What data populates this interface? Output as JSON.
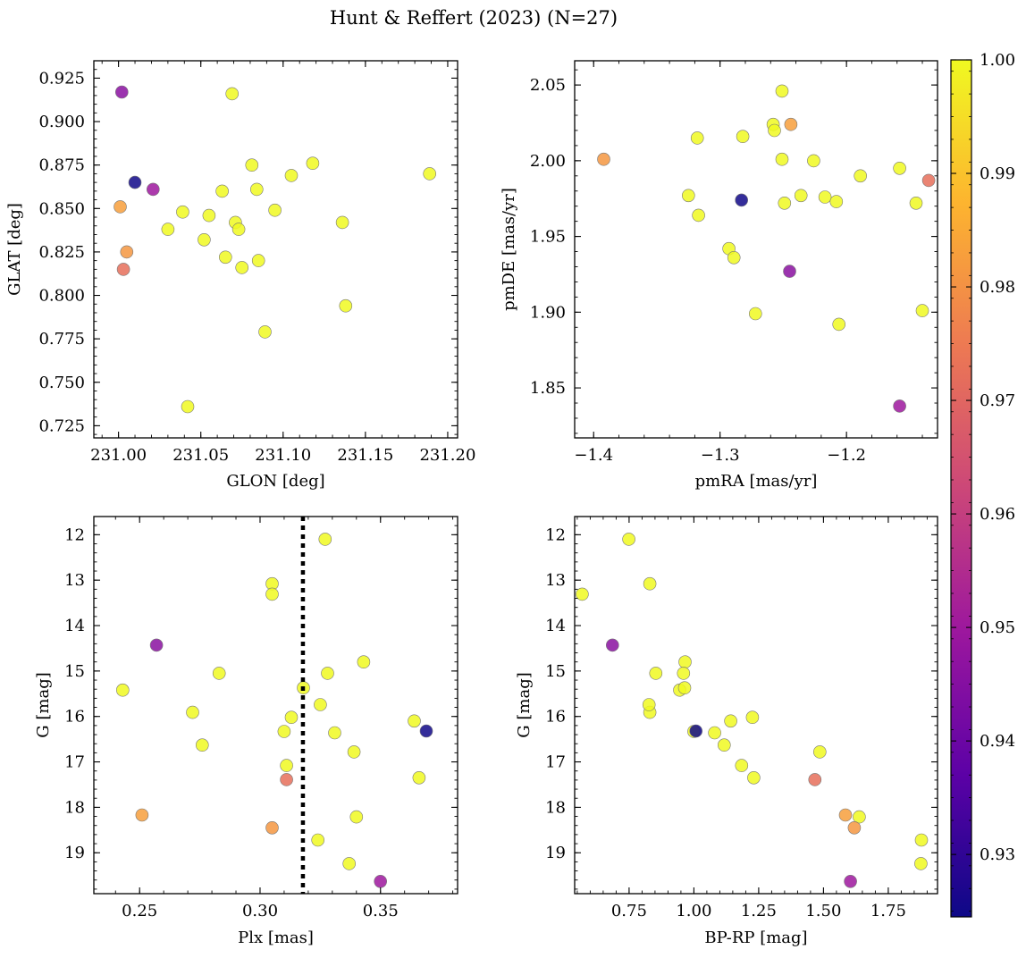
{
  "figure_title": "Hunt & Reffert (2023) (N=27)",
  "colors": {
    "colormap": [
      "#0d0887",
      "#5c01a6",
      "#9c179e",
      "#cc4778",
      "#ed7953",
      "#fdb42f",
      "#f0f921"
    ],
    "point_edge": "#777777",
    "threshold_line": "#000000"
  },
  "chart_data": [
    {
      "type": "scatter",
      "id": "glon-glat",
      "xlabel": "GLON [deg]",
      "ylabel": "GLAT [deg]",
      "xlim": [
        230.985,
        231.206
      ],
      "ylim": [
        0.718,
        0.935
      ],
      "xticks": [
        231.0,
        231.05,
        231.1,
        231.15,
        231.2
      ],
      "xticklabels": [
        "231.00",
        "231.05",
        "231.10",
        "231.15",
        "231.20"
      ],
      "yticks": [
        0.725,
        0.75,
        0.775,
        0.8,
        0.825,
        0.85,
        0.875,
        0.9,
        0.925
      ],
      "yticklabels": [
        "0.725",
        "0.750",
        "0.775",
        "0.800",
        "0.825",
        "0.850",
        "0.875",
        "0.900",
        "0.925"
      ],
      "invert_y": false,
      "x": [
        231.002,
        231.01,
        231.021,
        231.001,
        231.005,
        231.003,
        231.03,
        231.039,
        231.042,
        231.052,
        231.055,
        231.063,
        231.065,
        231.069,
        231.071,
        231.073,
        231.075,
        231.081,
        231.084,
        231.085,
        231.089,
        231.095,
        231.105,
        231.118,
        231.136,
        231.138,
        231.189
      ],
      "y": [
        0.917,
        0.865,
        0.861,
        0.851,
        0.825,
        0.815,
        0.838,
        0.848,
        0.736,
        0.832,
        0.846,
        0.86,
        0.822,
        0.916,
        0.842,
        0.838,
        0.816,
        0.875,
        0.861,
        0.82,
        0.779,
        0.849,
        0.869,
        0.876,
        0.842,
        0.794,
        0.87
      ]
    },
    {
      "type": "scatter",
      "id": "pmra-pmde",
      "xlabel": "pmRA [mas/yr]",
      "ylabel": "pmDE [mas/yr]",
      "xlim": [
        -1.415,
        -1.128
      ],
      "ylim": [
        1.817,
        2.066
      ],
      "xticks": [
        -1.4,
        -1.3,
        -1.2
      ],
      "xticklabels": [
        "−1.4",
        "−1.3",
        "−1.2"
      ],
      "yticks": [
        1.85,
        1.9,
        1.95,
        2.0,
        2.05
      ],
      "yticklabels": [
        "1.85",
        "1.90",
        "1.95",
        "2.00",
        "2.05"
      ],
      "invert_y": false,
      "x": [
        -1.245,
        -1.283,
        -1.158,
        -1.244,
        -1.392,
        -1.135,
        -1.251,
        -1.258,
        -1.257,
        -1.282,
        -1.318,
        -1.251,
        -1.226,
        -1.158,
        -1.189,
        -1.325,
        -1.236,
        -1.249,
        -1.217,
        -1.208,
        -1.145,
        -1.317,
        -1.293,
        -1.289,
        -1.272,
        -1.206,
        -1.14
      ],
      "y": [
        1.927,
        1.974,
        1.838,
        2.024,
        2.001,
        1.987,
        2.046,
        2.024,
        2.02,
        2.016,
        2.015,
        2.001,
        2.0,
        1.995,
        1.99,
        1.977,
        1.977,
        1.972,
        1.976,
        1.973,
        1.972,
        1.964,
        1.942,
        1.936,
        1.899,
        1.892,
        1.901
      ]
    },
    {
      "type": "scatter",
      "id": "plx-g",
      "xlabel": "Plx [mas]",
      "ylabel": "G [mag]",
      "xlim": [
        0.231,
        0.382
      ],
      "ylim": [
        11.6,
        19.9
      ],
      "xticks": [
        0.25,
        0.3,
        0.35
      ],
      "xticklabels": [
        "0.25",
        "0.30",
        "0.35"
      ],
      "yticks": [
        12,
        13,
        14,
        15,
        16,
        17,
        18,
        19
      ],
      "yticklabels": [
        "12",
        "13",
        "14",
        "15",
        "16",
        "17",
        "18",
        "19"
      ],
      "invert_y": true,
      "vline": 0.3178,
      "x": [
        0.257,
        0.369,
        0.35,
        0.251,
        0.305,
        0.311,
        0.327,
        0.305,
        0.305,
        0.243,
        0.283,
        0.318,
        0.343,
        0.328,
        0.272,
        0.325,
        0.313,
        0.364,
        0.31,
        0.331,
        0.276,
        0.339,
        0.311,
        0.366,
        0.34,
        0.324,
        0.337
      ],
      "y": [
        14.43,
        16.32,
        19.63,
        18.17,
        18.45,
        17.39,
        12.1,
        13.08,
        13.31,
        15.42,
        15.05,
        15.37,
        14.8,
        15.05,
        15.91,
        15.74,
        16.02,
        16.1,
        16.33,
        16.36,
        16.63,
        16.78,
        17.08,
        17.35,
        18.21,
        18.72,
        19.24
      ]
    },
    {
      "type": "scatter",
      "id": "bprp-g",
      "xlabel": "BP-RP [mag]",
      "ylabel": "G [mag]",
      "xlim": [
        0.54,
        1.94
      ],
      "ylim": [
        11.6,
        19.9
      ],
      "xticks": [
        0.75,
        1.0,
        1.25,
        1.5,
        1.75
      ],
      "xticklabels": [
        "0.75",
        "1.00",
        "1.25",
        "1.50",
        "1.75"
      ],
      "yticks": [
        12,
        13,
        14,
        15,
        16,
        17,
        18,
        19
      ],
      "yticklabels": [
        "12",
        "13",
        "14",
        "15",
        "16",
        "17",
        "18",
        "19"
      ],
      "invert_y": true,
      "x": [
        0.686,
        1.008,
        1.604,
        1.585,
        1.619,
        1.467,
        0.749,
        0.569,
        0.83,
        0.945,
        0.853,
        0.964,
        0.966,
        0.96,
        0.83,
        0.827,
        1.226,
        1.142,
        1.0,
        1.08,
        1.117,
        1.486,
        1.184,
        1.231,
        1.638,
        1.878,
        1.876
      ],
      "y": [
        14.43,
        16.32,
        19.63,
        18.17,
        18.45,
        17.39,
        12.1,
        13.31,
        13.08,
        15.42,
        15.05,
        15.37,
        14.8,
        15.05,
        15.91,
        15.74,
        16.02,
        16.1,
        16.33,
        16.36,
        16.63,
        16.78,
        17.08,
        17.35,
        18.21,
        18.72,
        19.24
      ]
    }
  ],
  "membership_probability": [
    0.946,
    0.925,
    0.95,
    0.983,
    0.981,
    0.972,
    1.0,
    1.0,
    1.0,
    1.0,
    1.0,
    1.0,
    1.0,
    1.0,
    1.0,
    1.0,
    1.0,
    1.0,
    1.0,
    1.0,
    1.0,
    1.0,
    1.0,
    1.0,
    1.0,
    1.0,
    1.0
  ],
  "colorbar": {
    "vmin": 0.9245,
    "vmax": 1.0,
    "ticks": [
      0.93,
      0.94,
      0.95,
      0.96,
      0.97,
      0.98,
      0.99,
      1.0
    ],
    "ticklabels": [
      "0.93",
      "0.94",
      "0.95",
      "0.96",
      "0.97",
      "0.98",
      "0.99",
      "1.00"
    ]
  }
}
